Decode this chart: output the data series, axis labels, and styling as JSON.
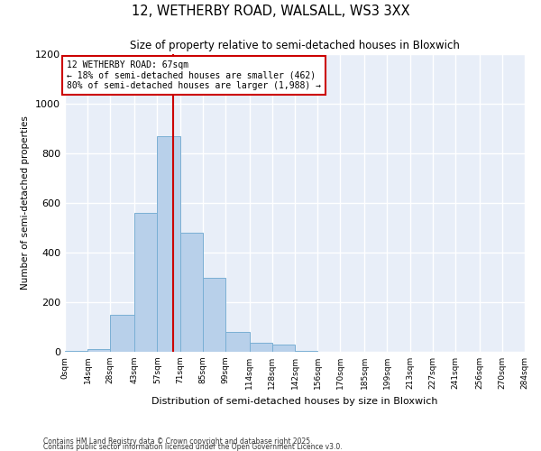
{
  "title": "12, WETHERBY ROAD, WALSALL, WS3 3XX",
  "subtitle": "Size of property relative to semi-detached houses in Bloxwich",
  "xlabel": "Distribution of semi-detached houses by size in Bloxwich",
  "ylabel": "Number of semi-detached properties",
  "bar_color": "#b8d0ea",
  "bar_edge_color": "#7aafd4",
  "background_color": "#e8eef8",
  "grid_color": "white",
  "bins": [
    0,
    14,
    28,
    43,
    57,
    71,
    85,
    99,
    114,
    128,
    142,
    156,
    170,
    185,
    199,
    213,
    227,
    241,
    256,
    270,
    284
  ],
  "bin_labels": [
    "0sqm",
    "14sqm",
    "28sqm",
    "43sqm",
    "57sqm",
    "71sqm",
    "85sqm",
    "99sqm",
    "114sqm",
    "128sqm",
    "142sqm",
    "156sqm",
    "170sqm",
    "185sqm",
    "199sqm",
    "213sqm",
    "227sqm",
    "241sqm",
    "256sqm",
    "270sqm",
    "284sqm"
  ],
  "counts": [
    5,
    10,
    150,
    560,
    870,
    480,
    300,
    80,
    35,
    30,
    5,
    0,
    0,
    0,
    0,
    0,
    0,
    0,
    0,
    0
  ],
  "property_size": 67,
  "property_label": "12 WETHERBY ROAD: 67sqm",
  "pct_smaller": 18,
  "pct_larger": 80,
  "n_smaller": 462,
  "n_larger": 1988,
  "vline_color": "#cc0000",
  "annotation_box_color": "#cc0000",
  "ylim": [
    0,
    1200
  ],
  "yticks": [
    0,
    200,
    400,
    600,
    800,
    1000,
    1200
  ],
  "footnote1": "Contains HM Land Registry data © Crown copyright and database right 2025.",
  "footnote2": "Contains public sector information licensed under the Open Government Licence v3.0."
}
